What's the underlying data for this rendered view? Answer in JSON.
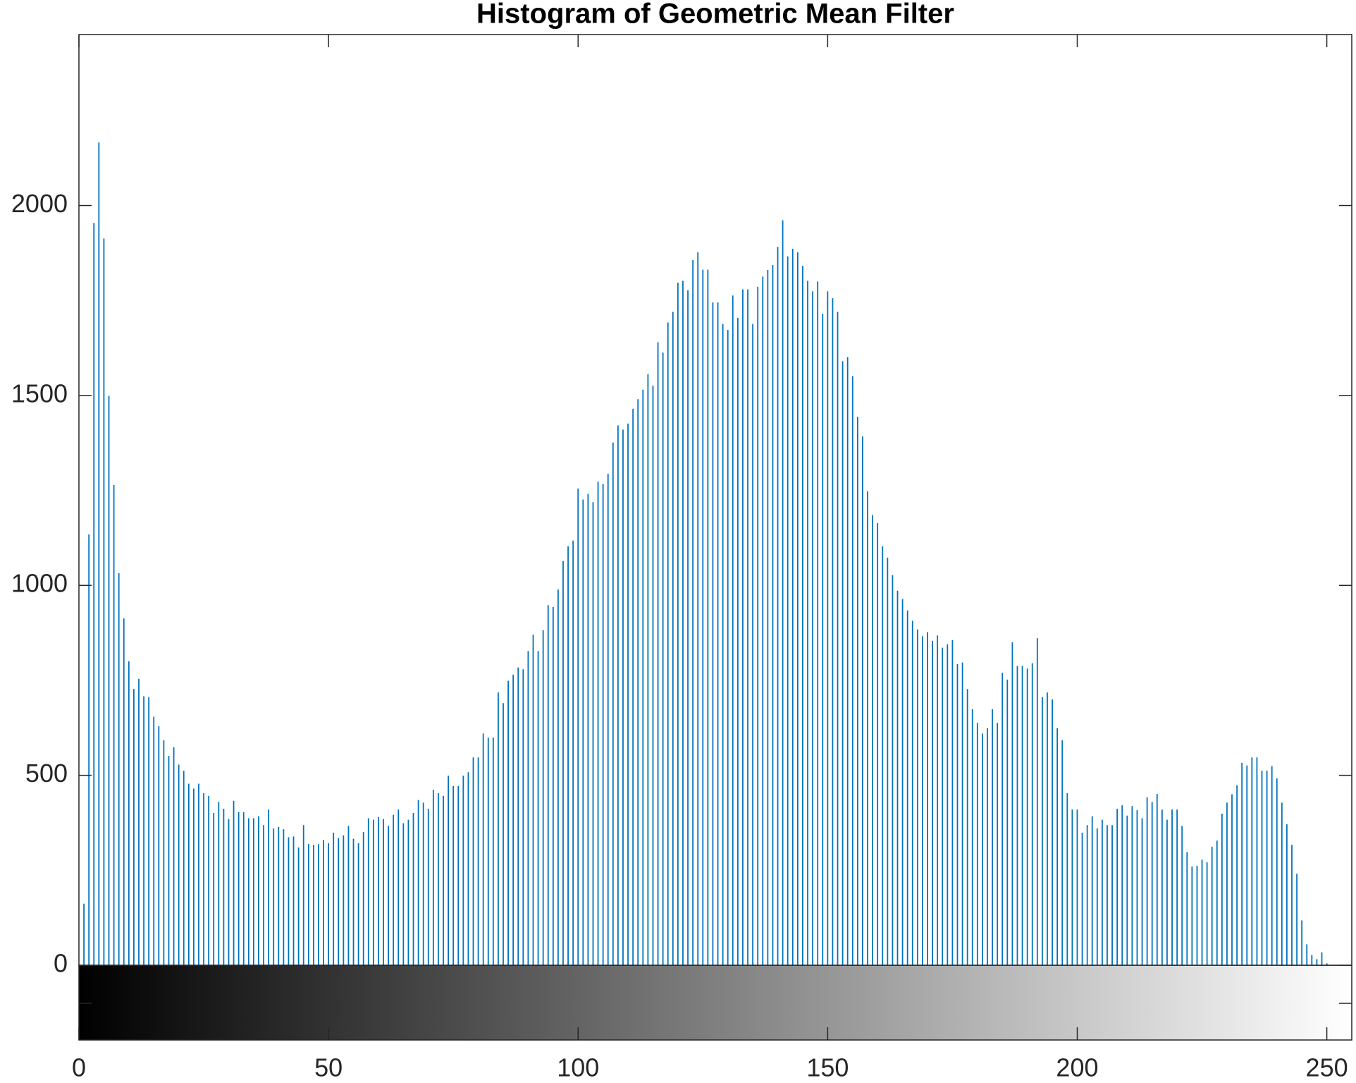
{
  "chart_data": {
    "type": "bar",
    "title": "Histogram of Geometric Mean Filter",
    "color": "#0072bd",
    "x": [
      0,
      1,
      2,
      3,
      4,
      5,
      6,
      7,
      8,
      9,
      10,
      11,
      12,
      13,
      14,
      15,
      16,
      17,
      18,
      19,
      20,
      21,
      22,
      23,
      24,
      25,
      26,
      27,
      28,
      29,
      30,
      31,
      32,
      33,
      34,
      35,
      36,
      37,
      38,
      39,
      40,
      41,
      42,
      43,
      44,
      45,
      46,
      47,
      48,
      49,
      50,
      51,
      52,
      53,
      54,
      55,
      56,
      57,
      58,
      59,
      60,
      61,
      62,
      63,
      64,
      65,
      66,
      67,
      68,
      69,
      70,
      71,
      72,
      73,
      74,
      75,
      76,
      77,
      78,
      79,
      80,
      81,
      82,
      83,
      84,
      85,
      86,
      87,
      88,
      89,
      90,
      91,
      92,
      93,
      94,
      95,
      96,
      97,
      98,
      99,
      100,
      101,
      102,
      103,
      104,
      105,
      106,
      107,
      108,
      109,
      110,
      111,
      112,
      113,
      114,
      115,
      116,
      117,
      118,
      119,
      120,
      121,
      122,
      123,
      124,
      125,
      126,
      127,
      128,
      129,
      130,
      131,
      132,
      133,
      134,
      135,
      136,
      137,
      138,
      139,
      140,
      141,
      142,
      143,
      144,
      145,
      146,
      147,
      148,
      149,
      150,
      151,
      152,
      153,
      154,
      155,
      156,
      157,
      158,
      159,
      160,
      161,
      162,
      163,
      164,
      165,
      166,
      167,
      168,
      169,
      170,
      171,
      172,
      173,
      174,
      175,
      176,
      177,
      178,
      179,
      180,
      181,
      182,
      183,
      184,
      185,
      186,
      187,
      188,
      189,
      190,
      191,
      192,
      193,
      194,
      195,
      196,
      197,
      198,
      199,
      200,
      201,
      202,
      203,
      204,
      205,
      206,
      207,
      208,
      209,
      210,
      211,
      212,
      213,
      214,
      215,
      216,
      217,
      218,
      219,
      220,
      221,
      222,
      223,
      224,
      225,
      226,
      227,
      228,
      229,
      230,
      231,
      232,
      233,
      234,
      235,
      236,
      237,
      238,
      239,
      240,
      241,
      242,
      243,
      244,
      245,
      246,
      247,
      248,
      249,
      250,
      251,
      252,
      253,
      254,
      255
    ],
    "values": [
      0,
      162,
      1134,
      1954,
      2166,
      1913,
      1499,
      1264,
      1032,
      913,
      800,
      727,
      754,
      708,
      706,
      654,
      629,
      592,
      551,
      574,
      528,
      512,
      478,
      465,
      478,
      453,
      446,
      401,
      430,
      412,
      385,
      433,
      403,
      403,
      387,
      387,
      392,
      369,
      410,
      360,
      364,
      358,
      337,
      339,
      310,
      369,
      319,
      317,
      319,
      330,
      321,
      349,
      335,
      342,
      367,
      333,
      321,
      351,
      387,
      383,
      390,
      385,
      367,
      396,
      410,
      374,
      383,
      401,
      435,
      428,
      412,
      462,
      453,
      446,
      499,
      472,
      472,
      499,
      508,
      547,
      547,
      610,
      599,
      599,
      718,
      690,
      749,
      765,
      784,
      779,
      827,
      870,
      827,
      882,
      948,
      943,
      989,
      1064,
      1103,
      1118,
      1255,
      1226,
      1241,
      1219,
      1273,
      1267,
      1294,
      1376,
      1421,
      1410,
      1426,
      1465,
      1490,
      1515,
      1556,
      1526,
      1640,
      1613,
      1692,
      1720,
      1797,
      1802,
      1777,
      1856,
      1877,
      1831,
      1831,
      1745,
      1745,
      1688,
      1672,
      1763,
      1704,
      1779,
      1779,
      1688,
      1786,
      1813,
      1830,
      1843,
      1891,
      1961,
      1866,
      1886,
      1877,
      1841,
      1802,
      1774,
      1800,
      1715,
      1774,
      1756,
      1720,
      1590,
      1601,
      1551,
      1444,
      1392,
      1248,
      1185,
      1164,
      1103,
      1073,
      1027,
      986,
      964,
      934,
      907,
      884,
      866,
      877,
      854,
      868,
      836,
      845,
      856,
      793,
      797,
      727,
      674,
      638,
      610,
      624,
      674,
      638,
      770,
      752,
      850,
      788,
      788,
      781,
      795,
      861,
      706,
      718,
      700,
      624,
      592,
      453,
      410,
      410,
      349,
      369,
      392,
      360,
      383,
      369,
      369,
      412,
      421,
      394,
      419,
      408,
      387,
      442,
      430,
      451,
      410,
      383,
      410,
      410,
      367,
      298,
      260,
      262,
      278,
      271,
      312,
      328,
      399,
      428,
      450,
      474,
      533,
      526,
      547,
      547,
      512,
      512,
      524,
      492,
      428,
      371,
      317,
      241,
      118,
      55,
      27,
      16,
      34,
      5,
      0,
      0,
      0,
      0,
      0
    ],
    "xlim": [
      0,
      255
    ],
    "xticks": [
      0,
      50,
      100,
      150,
      200,
      250
    ],
    "ylim": [
      0,
      2450
    ],
    "yticks": [
      0,
      500,
      1000,
      1500,
      2000
    ]
  }
}
